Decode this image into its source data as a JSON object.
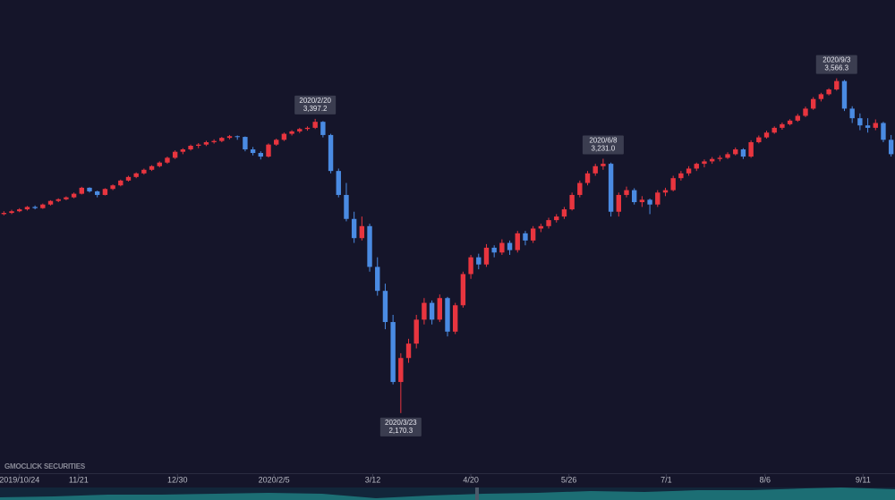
{
  "chart_data": {
    "type": "candlestick",
    "up_color": "#e8353f",
    "down_color": "#4a8be3",
    "xlim": [
      -0.5,
      114.5
    ],
    "ylim": [
      1916,
      3893
    ],
    "xticks": [
      {
        "value": 2,
        "label": "2019/10/24"
      },
      {
        "value": 9.6,
        "label": "11/21"
      },
      {
        "value": 22.3,
        "label": "12/30"
      },
      {
        "value": 34.7,
        "label": "2020/2/5"
      },
      {
        "value": 47.4,
        "label": "3/12"
      },
      {
        "value": 60,
        "label": "4/20"
      },
      {
        "value": 72.6,
        "label": "5/26"
      },
      {
        "value": 85.1,
        "label": "7/1"
      },
      {
        "value": 97.8,
        "label": "8/6"
      },
      {
        "value": 110.4,
        "label": "9/11"
      }
    ],
    "brand": "GMOCLICK SECURITIES",
    "annotations": [
      {
        "x": 40,
        "date": "2020/2/20",
        "value": 3397.2,
        "value_label": "3,397.2",
        "anchor": "high"
      },
      {
        "x": 51,
        "date": "2020/3/23",
        "value": 2170.3,
        "value_label": "2,170.3",
        "anchor": "low"
      },
      {
        "x": 77,
        "date": "2020/6/8",
        "value": 3231,
        "value_label": "3,231.0",
        "anchor": "high"
      },
      {
        "x": 107,
        "date": "2020/9/3",
        "value": 3566.3,
        "value_label": "3,566.3",
        "anchor": "high"
      }
    ],
    "ohlc": [
      [
        3000,
        3012,
        2995,
        3005
      ],
      [
        3005,
        3018,
        3000,
        3012
      ],
      [
        3012,
        3025,
        3008,
        3020
      ],
      [
        3020,
        3034,
        3015,
        3030
      ],
      [
        3030,
        3036,
        3020,
        3025
      ],
      [
        3025,
        3044,
        3022,
        3040
      ],
      [
        3040,
        3058,
        3036,
        3055
      ],
      [
        3055,
        3066,
        3050,
        3062
      ],
      [
        3062,
        3074,
        3058,
        3070
      ],
      [
        3070,
        3090,
        3066,
        3085
      ],
      [
        3085,
        3114,
        3082,
        3110
      ],
      [
        3110,
        3112,
        3090,
        3095
      ],
      [
        3095,
        3098,
        3070,
        3080
      ],
      [
        3080,
        3108,
        3078,
        3105
      ],
      [
        3105,
        3124,
        3100,
        3120
      ],
      [
        3120,
        3144,
        3116,
        3140
      ],
      [
        3140,
        3160,
        3136,
        3155
      ],
      [
        3155,
        3174,
        3150,
        3170
      ],
      [
        3170,
        3190,
        3165,
        3185
      ],
      [
        3185,
        3204,
        3180,
        3200
      ],
      [
        3200,
        3220,
        3195,
        3215
      ],
      [
        3215,
        3240,
        3210,
        3235
      ],
      [
        3235,
        3266,
        3230,
        3260
      ],
      [
        3260,
        3275,
        3250,
        3270
      ],
      [
        3270,
        3290,
        3265,
        3285
      ],
      [
        3285,
        3296,
        3275,
        3290
      ],
      [
        3290,
        3306,
        3284,
        3300
      ],
      [
        3300,
        3312,
        3294,
        3305
      ],
      [
        3305,
        3322,
        3300,
        3318
      ],
      [
        3318,
        3330,
        3312,
        3325
      ],
      [
        3325,
        3328,
        3310,
        3322
      ],
      [
        3322,
        3324,
        3262,
        3270
      ],
      [
        3270,
        3280,
        3245,
        3255
      ],
      [
        3255,
        3262,
        3228,
        3240
      ],
      [
        3240,
        3295,
        3236,
        3290
      ],
      [
        3290,
        3315,
        3285,
        3310
      ],
      [
        3310,
        3340,
        3305,
        3335
      ],
      [
        3335,
        3350,
        3328,
        3345
      ],
      [
        3345,
        3360,
        3338,
        3355
      ],
      [
        3355,
        3366,
        3348,
        3360
      ],
      [
        3360,
        3397.2,
        3355,
        3385
      ],
      [
        3385,
        3388,
        3320,
        3330
      ],
      [
        3330,
        3335,
        3170,
        3180
      ],
      [
        3180,
        3190,
        3070,
        3080
      ],
      [
        3080,
        3130,
        2970,
        2980
      ],
      [
        2980,
        3010,
        2880,
        2900
      ],
      [
        2900,
        2990,
        2890,
        2950
      ],
      [
        2950,
        2960,
        2760,
        2780
      ],
      [
        2780,
        2820,
        2660,
        2680
      ],
      [
        2680,
        2710,
        2520,
        2550
      ],
      [
        2550,
        2580,
        2290,
        2300
      ],
      [
        2300,
        2420,
        2170.3,
        2400
      ],
      [
        2400,
        2480,
        2380,
        2460
      ],
      [
        2460,
        2580,
        2440,
        2560
      ],
      [
        2560,
        2650,
        2540,
        2630
      ],
      [
        2630,
        2640,
        2540,
        2560
      ],
      [
        2560,
        2665,
        2550,
        2650
      ],
      [
        2650,
        2655,
        2490,
        2510
      ],
      [
        2510,
        2630,
        2500,
        2620
      ],
      [
        2620,
        2760,
        2610,
        2750
      ],
      [
        2750,
        2830,
        2730,
        2820
      ],
      [
        2820,
        2835,
        2770,
        2790
      ],
      [
        2790,
        2875,
        2780,
        2860
      ],
      [
        2860,
        2870,
        2820,
        2840
      ],
      [
        2840,
        2895,
        2830,
        2880
      ],
      [
        2880,
        2890,
        2830,
        2850
      ],
      [
        2850,
        2930,
        2840,
        2920
      ],
      [
        2920,
        2930,
        2870,
        2890
      ],
      [
        2890,
        2950,
        2880,
        2940
      ],
      [
        2940,
        2960,
        2925,
        2950
      ],
      [
        2950,
        2985,
        2940,
        2975
      ],
      [
        2975,
        3000,
        2965,
        2990
      ],
      [
        2990,
        3030,
        2980,
        3020
      ],
      [
        3020,
        3090,
        3015,
        3080
      ],
      [
        3080,
        3140,
        3070,
        3130
      ],
      [
        3130,
        3180,
        3120,
        3170
      ],
      [
        3170,
        3210,
        3160,
        3200
      ],
      [
        3200,
        3231,
        3185,
        3210
      ],
      [
        3210,
        3215,
        2990,
        3010
      ],
      [
        3010,
        3090,
        2990,
        3080
      ],
      [
        3080,
        3115,
        3070,
        3100
      ],
      [
        3100,
        3108,
        3040,
        3050
      ],
      [
        3050,
        3075,
        3030,
        3060
      ],
      [
        3060,
        3065,
        3000,
        3040
      ],
      [
        3040,
        3100,
        3030,
        3090
      ],
      [
        3090,
        3110,
        3075,
        3100
      ],
      [
        3100,
        3160,
        3095,
        3150
      ],
      [
        3150,
        3180,
        3140,
        3170
      ],
      [
        3170,
        3200,
        3160,
        3190
      ],
      [
        3190,
        3215,
        3180,
        3210
      ],
      [
        3210,
        3228,
        3195,
        3220
      ],
      [
        3220,
        3238,
        3210,
        3230
      ],
      [
        3230,
        3245,
        3220,
        3235
      ],
      [
        3235,
        3258,
        3230,
        3250
      ],
      [
        3250,
        3278,
        3245,
        3270
      ],
      [
        3270,
        3275,
        3230,
        3240
      ],
      [
        3240,
        3308,
        3235,
        3300
      ],
      [
        3300,
        3328,
        3295,
        3320
      ],
      [
        3320,
        3348,
        3315,
        3340
      ],
      [
        3340,
        3366,
        3335,
        3360
      ],
      [
        3360,
        3382,
        3352,
        3375
      ],
      [
        3375,
        3396,
        3370,
        3390
      ],
      [
        3390,
        3418,
        3385,
        3410
      ],
      [
        3410,
        3448,
        3405,
        3440
      ],
      [
        3440,
        3488,
        3435,
        3480
      ],
      [
        3480,
        3506,
        3470,
        3500
      ],
      [
        3500,
        3525,
        3495,
        3520
      ],
      [
        3520,
        3566.3,
        3515,
        3555
      ],
      [
        3555,
        3560,
        3430,
        3440
      ],
      [
        3440,
        3450,
        3380,
        3400
      ],
      [
        3400,
        3420,
        3350,
        3370
      ],
      [
        3370,
        3400,
        3340,
        3360
      ],
      [
        3360,
        3395,
        3350,
        3380
      ],
      [
        3380,
        3385,
        3300,
        3310
      ],
      [
        3310,
        3330,
        3240,
        3250
      ]
    ]
  }
}
